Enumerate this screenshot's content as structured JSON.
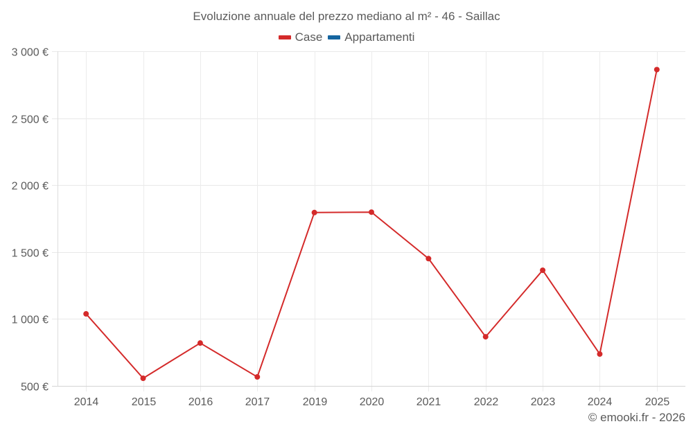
{
  "chart_data": {
    "type": "line",
    "title": "Evoluzione annuale del prezzo mediano al m² - 46 - Saillac",
    "categories": [
      "2014",
      "2015",
      "2016",
      "2017",
      "2019",
      "2020",
      "2021",
      "2022",
      "2023",
      "2024",
      "2025"
    ],
    "series": [
      {
        "name": "Case",
        "color": "#d42a2a",
        "values": [
          1038,
          557,
          820,
          567,
          1795,
          1798,
          1451,
          867,
          1364,
          738,
          2863
        ]
      },
      {
        "name": "Appartamenti",
        "color": "#1565a0",
        "values": []
      }
    ],
    "xlabel": "",
    "ylabel": "",
    "ylim": [
      500,
      3000
    ],
    "yticks": [
      500,
      1000,
      1500,
      2000,
      2500,
      3000
    ],
    "ytick_labels": [
      "500 €",
      "1 000 €",
      "1 500 €",
      "2 000 €",
      "2 500 €",
      "3 000 €"
    ],
    "grid": true,
    "legend_position": "top-center"
  },
  "legend": {
    "items": [
      {
        "label": "Case",
        "color": "#d42a2a"
      },
      {
        "label": "Appartamenti",
        "color": "#1565a0"
      }
    ]
  },
  "credits": "© emooki.fr - 2026"
}
